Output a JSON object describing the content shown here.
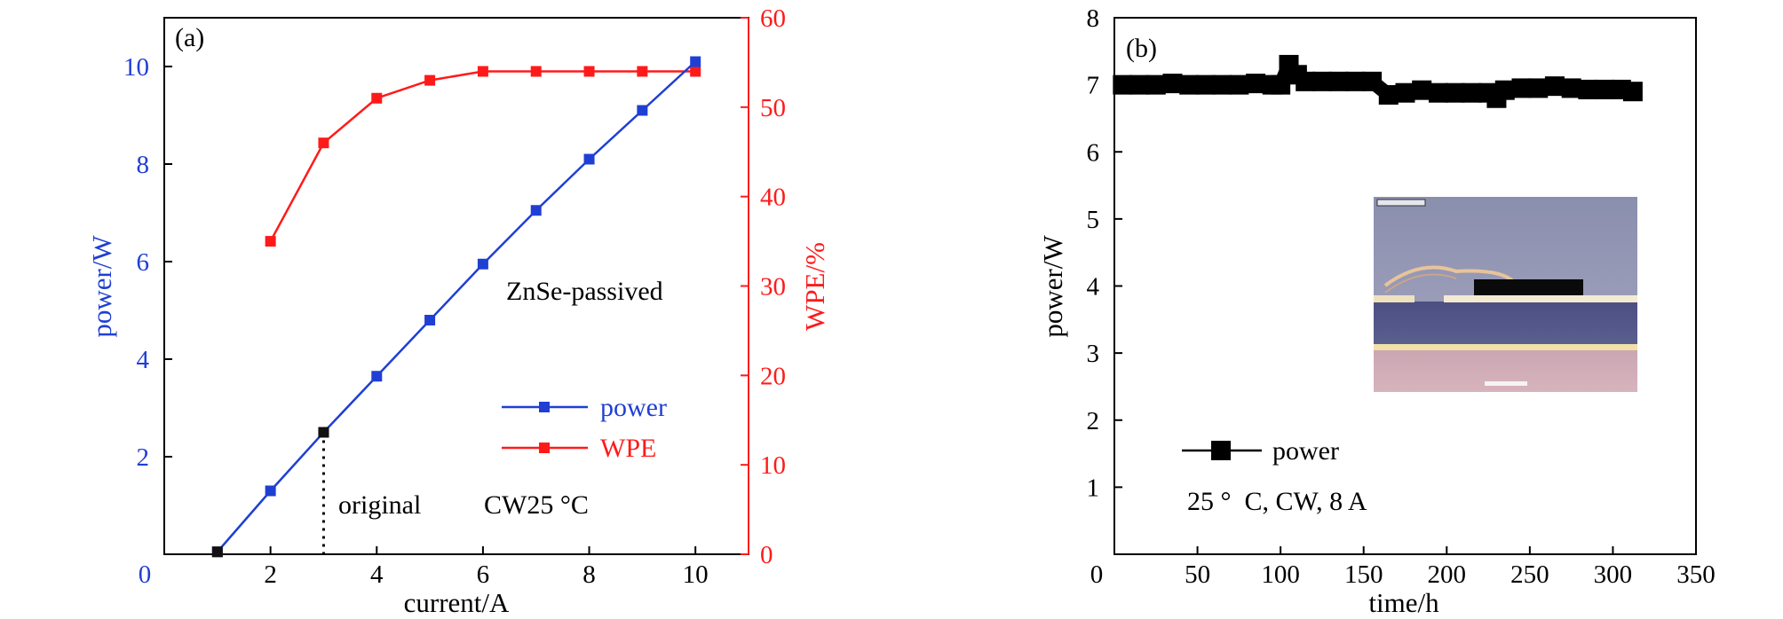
{
  "colors": {
    "power_a": "#1f3fd4",
    "wpe_a": "#ff1a1a",
    "black": "#000000"
  },
  "chart_data": [
    {
      "type": "line",
      "panel_label": "(a)",
      "xlabel": "current/A",
      "ylabel_left": "power/W",
      "ylabel_right": "WPE/%",
      "xlim": [
        0,
        11
      ],
      "ylim_left": [
        0,
        11
      ],
      "ylim_right": [
        0,
        60
      ],
      "x_ticks": [
        2,
        4,
        6,
        8,
        10
      ],
      "y_ticks_left": [
        2,
        4,
        6,
        8,
        10
      ],
      "y_ticks_right": [
        0,
        10,
        20,
        30,
        40,
        50,
        60
      ],
      "origin_label": "0",
      "series": [
        {
          "name": "power",
          "axis": "left",
          "color": "#1f3fd4",
          "marker": "square",
          "x": [
            1,
            2,
            3,
            4,
            5,
            6,
            7,
            8,
            9,
            10
          ],
          "y": [
            0.05,
            1.3,
            2.5,
            3.65,
            4.8,
            5.95,
            7.05,
            8.1,
            9.1,
            10.1
          ]
        },
        {
          "name": "WPE",
          "axis": "right",
          "color": "#ff1a1a",
          "marker": "square",
          "x": [
            2,
            3,
            4,
            5,
            6,
            7,
            8,
            9,
            10
          ],
          "y": [
            35,
            46,
            51,
            53,
            54,
            54,
            54,
            54,
            54
          ]
        }
      ],
      "highlight_point": {
        "x": 3,
        "y": 2.5
      },
      "annotations": {
        "passivation": "ZnSe-passived",
        "original": "original",
        "condition": "CW25 °C"
      },
      "legend_position": "lower-right"
    },
    {
      "type": "line",
      "panel_label": "(b)",
      "xlabel": "time/h",
      "ylabel": "power/W",
      "xlim": [
        0,
        350
      ],
      "ylim": [
        0,
        8
      ],
      "x_ticks": [
        0,
        50,
        100,
        150,
        200,
        250,
        300,
        350
      ],
      "y_ticks": [
        1,
        2,
        3,
        4,
        5,
        6,
        7,
        8
      ],
      "series": [
        {
          "name": "power",
          "color": "#000000",
          "marker": "square",
          "x": [
            5,
            15,
            25,
            35,
            45,
            55,
            65,
            75,
            85,
            95,
            100,
            105,
            110,
            115,
            125,
            135,
            145,
            155,
            165,
            175,
            185,
            195,
            205,
            215,
            225,
            230,
            235,
            245,
            255,
            265,
            275,
            285,
            295,
            305,
            312
          ],
          "y": [
            7.0,
            7.0,
            7.0,
            7.02,
            7.0,
            7.0,
            7.0,
            7.0,
            7.02,
            7.0,
            7.0,
            7.3,
            7.15,
            7.05,
            7.05,
            7.05,
            7.05,
            7.05,
            6.85,
            6.88,
            6.92,
            6.88,
            6.88,
            6.88,
            6.88,
            6.8,
            6.92,
            6.95,
            6.95,
            6.98,
            6.95,
            6.93,
            6.93,
            6.93,
            6.9
          ]
        }
      ],
      "annotations": {
        "condition": "25 °  C, CW, 8 A"
      },
      "legend_position": "lower-left",
      "inset": "micrograph"
    }
  ]
}
